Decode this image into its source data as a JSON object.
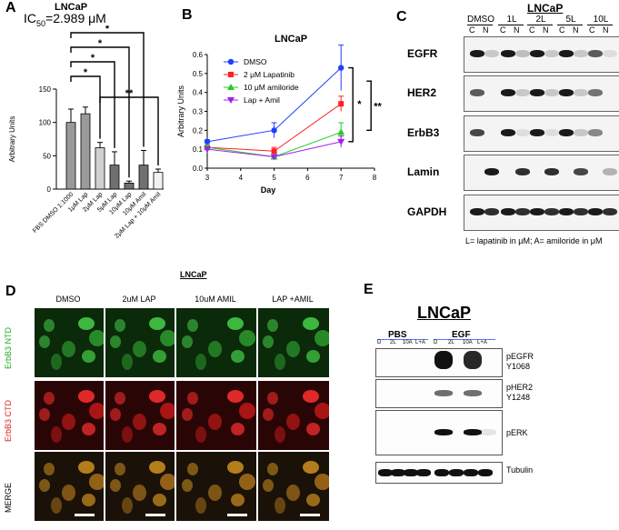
{
  "panel_A": {
    "label": "A",
    "title": "LNCaP",
    "ic50": "IC",
    "ic50_sub": "50",
    "ic50_val": "=2.989 μM",
    "chart_data": {
      "type": "bar",
      "ylabel": "Arbitrary Units",
      "ylim": [
        0,
        150
      ],
      "yticks": [
        "0",
        "50",
        "100",
        "150"
      ],
      "categories": [
        "FBS DMSO 1:1000",
        "1μM Lap",
        "2μM Lap",
        "5μM Lap",
        "10μM Lap",
        "10μM Amil",
        "2μM Lap + 10μM Amil"
      ],
      "values": [
        100,
        113,
        62,
        36,
        9,
        36,
        25
      ],
      "errors": [
        20,
        10,
        8,
        20,
        3,
        22,
        5
      ],
      "bar_colors": [
        "#9a9a9a",
        "#9a9a9a",
        "#d0d0d0",
        "#707070",
        "#707070",
        "#707070",
        "#f2f2f2"
      ],
      "significance": [
        "*",
        "*",
        "*",
        "*",
        "**"
      ]
    }
  },
  "panel_B": {
    "label": "B",
    "title": "LNCaP",
    "chart_data": {
      "type": "line",
      "xlabel": "Day",
      "ylabel": "Arbitrary Units",
      "xlim": [
        3,
        8
      ],
      "ylim": [
        0.0,
        0.6
      ],
      "xticks": [
        "3",
        "4",
        "5",
        "6",
        "7",
        "8"
      ],
      "yticks": [
        "0.0",
        "0.1",
        "0.2",
        "0.3",
        "0.4",
        "0.5",
        "0.6"
      ],
      "x": [
        3,
        5,
        7
      ],
      "series": [
        {
          "name": "DMSO",
          "color": "#1f3fff",
          "marker": "circle",
          "values": [
            0.14,
            0.2,
            0.53
          ],
          "errors": [
            0.01,
            0.04,
            0.12
          ]
        },
        {
          "name": "2 μM Lapatinib",
          "color": "#ff2020",
          "marker": "square",
          "values": [
            0.11,
            0.09,
            0.34
          ],
          "errors": [
            0.01,
            0.02,
            0.04
          ]
        },
        {
          "name": "10 μM amiloride",
          "color": "#22cc22",
          "marker": "triangle",
          "values": [
            0.11,
            0.06,
            0.19
          ],
          "errors": [
            0.01,
            0.01,
            0.05
          ]
        },
        {
          "name": "Lap + Amil",
          "color": "#a020f0",
          "marker": "triangle-down",
          "values": [
            0.1,
            0.06,
            0.14
          ],
          "errors": [
            0.01,
            0.01,
            0.03
          ]
        }
      ],
      "significance": [
        "*",
        "**"
      ]
    }
  },
  "panel_C": {
    "label": "C",
    "title": "LNCaP",
    "groups": [
      "DMSO",
      "1L",
      "2L",
      "5L",
      "10L"
    ],
    "fractions": [
      "C",
      "N",
      "C",
      "N",
      "C",
      "N",
      "C",
      "N",
      "C",
      "N"
    ],
    "rows": [
      "EGFR",
      "HER2",
      "ErbB3",
      "Lamin",
      "GAPDH"
    ],
    "footnote": "L= lapatinib in μM; A= amiloride in μM"
  },
  "panel_D": {
    "label": "D",
    "title": "LNCaP",
    "columns": [
      "DMSO",
      "2uM LAP",
      "10uM AMIL",
      "LAP +AMIL"
    ],
    "rows": [
      {
        "label": "ErbB3 NTD",
        "color": "#22aa22"
      },
      {
        "label": "ErbB3 CTD",
        "color": "#dd2222"
      },
      {
        "label": "MERGE",
        "color": "#000000"
      }
    ]
  },
  "panel_E": {
    "label": "E",
    "title": "LNCaP",
    "groups": [
      "PBS",
      "EGF"
    ],
    "lanes": [
      "D",
      "2L",
      "10A",
      "L+A",
      "D",
      "2L",
      "10A",
      "L+A"
    ],
    "rows": [
      {
        "label": "pEGFR",
        "sub": "Y1068"
      },
      {
        "label": "pHER2",
        "sub": "Y1248"
      },
      {
        "label": "pERK",
        "sub": ""
      },
      {
        "label": "Tubulin",
        "sub": ""
      }
    ]
  }
}
